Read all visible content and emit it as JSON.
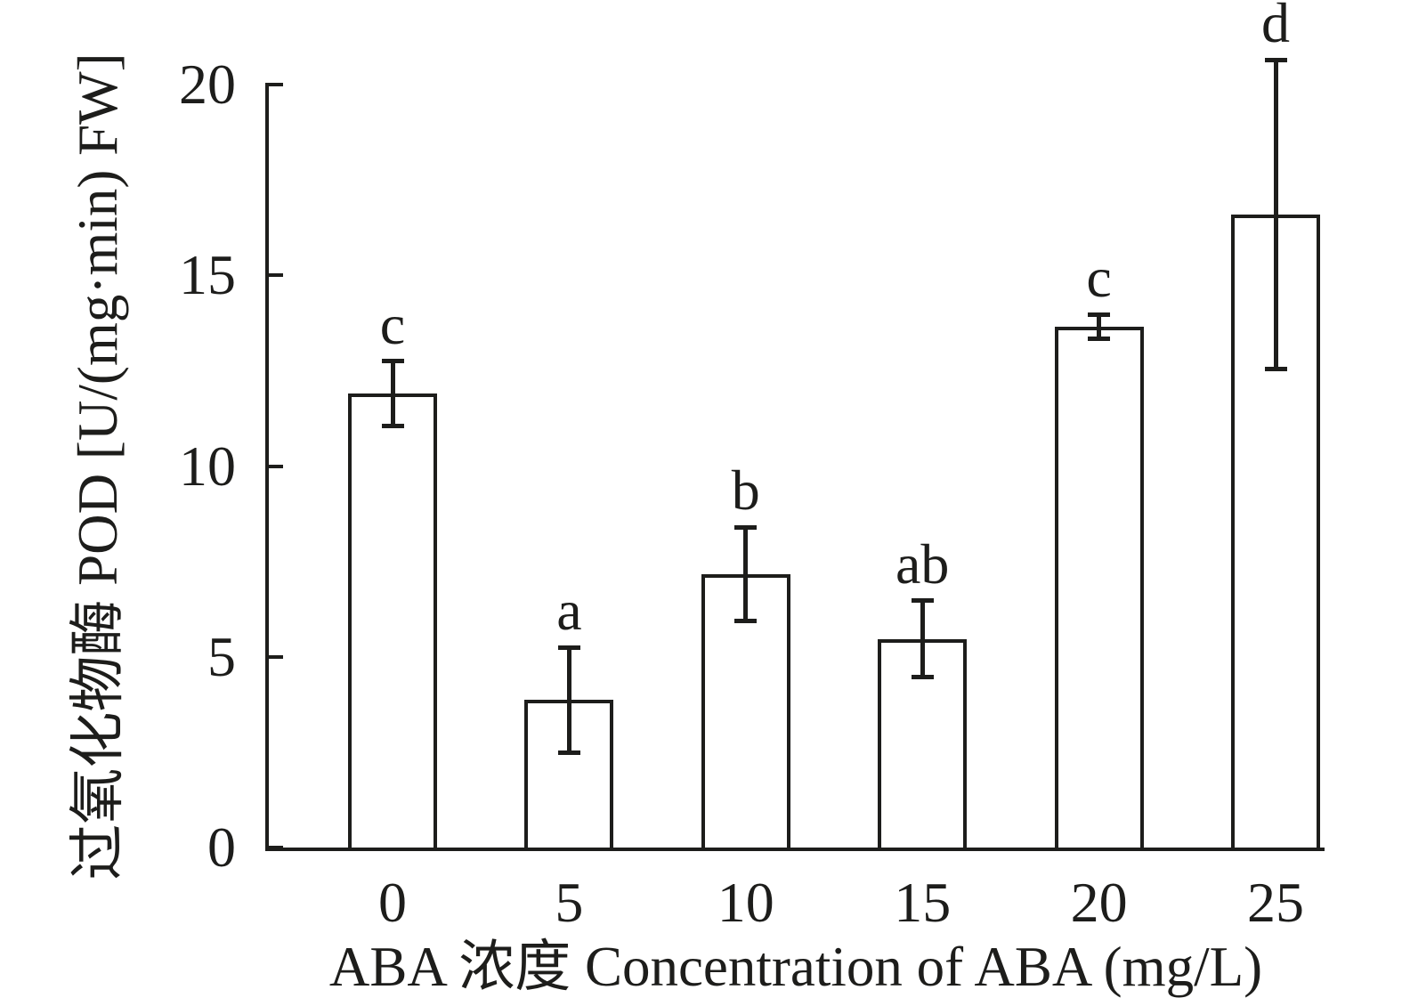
{
  "figure": {
    "background_color": "#ffffff",
    "ink_color": "#1d1d1b",
    "bar_fill_color": "#ffffff"
  },
  "chart_data": {
    "type": "bar",
    "title": "",
    "xlabel": "ABA 浓度 Concentration of ABA (mg/L)",
    "ylabel": "过氧化物酶 POD [U/(mg·min) FW]",
    "categories": [
      "0",
      "5",
      "10",
      "15",
      "20",
      "25"
    ],
    "values": [
      11.9,
      3.87,
      7.17,
      5.47,
      13.65,
      16.6
    ],
    "errors": [
      0.85,
      1.38,
      1.22,
      1.0,
      0.32,
      4.05
    ],
    "sig_labels": [
      "c",
      "a",
      "b",
      "ab",
      "c",
      "d"
    ],
    "y_ticks": [
      0,
      5,
      10,
      15,
      20
    ],
    "y_tick_labels": [
      "0",
      "5",
      "10",
      "15",
      "20"
    ],
    "ylim": [
      0,
      20
    ],
    "grid": false,
    "legend": null,
    "bar_edge_color": "#1d1d1b",
    "error_bar_style": "capped, symmetric"
  }
}
